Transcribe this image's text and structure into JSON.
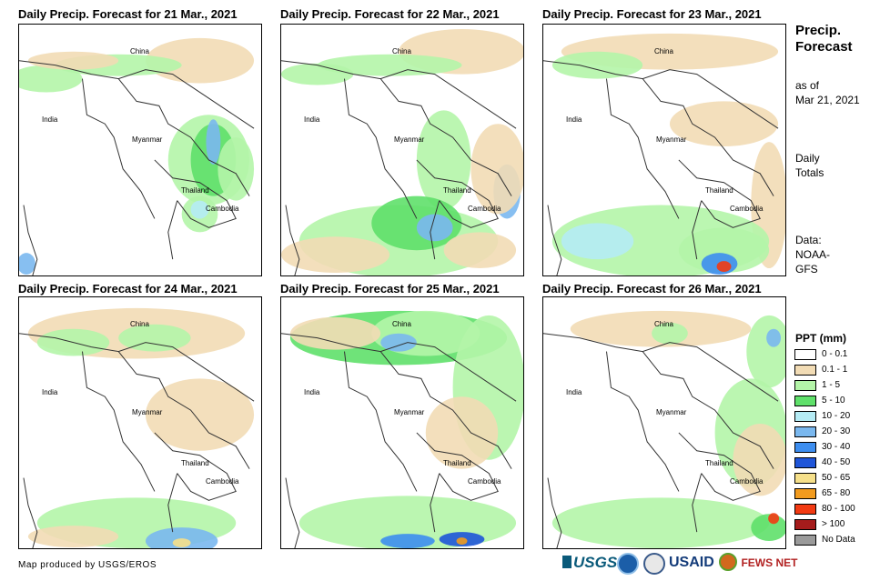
{
  "panels": [
    {
      "title": "Daily Precip. Forecast for 21 Mar., 2021"
    },
    {
      "title": "Daily Precip. Forecast for 22 Mar., 2021"
    },
    {
      "title": "Daily Precip. Forecast for 23 Mar., 2021"
    },
    {
      "title": "Daily Precip. Forecast for 24 Mar., 2021"
    },
    {
      "title": "Daily Precip. Forecast for 25 Mar., 2021"
    },
    {
      "title": "Daily Precip. Forecast for 26 Mar., 2021"
    }
  ],
  "map_labels": {
    "china": "China",
    "india": "India",
    "myanmar": "Myanmar",
    "thailand": "Thailand",
    "cambodia": "Cambodia"
  },
  "sidebar": {
    "title_line1": "Precip.",
    "title_line2": "Forecast",
    "asof_line1": "as of",
    "asof_line2": "Mar 21, 2021",
    "totals_line1": "Daily",
    "totals_line2": "Totals",
    "data_line1": "Data:",
    "data_line2": "NOAA-",
    "data_line3": "GFS"
  },
  "legend": {
    "title": "PPT (mm)",
    "items": [
      {
        "label": "0 - 0.1",
        "color": "#ffffff"
      },
      {
        "label": "0.1 - 1",
        "color": "#f2dcb5"
      },
      {
        "label": "1 - 5",
        "color": "#b4f5a8"
      },
      {
        "label": "5 - 10",
        "color": "#5fe06a"
      },
      {
        "label": "10 - 20",
        "color": "#b5ecf5"
      },
      {
        "label": "20 - 30",
        "color": "#7ab8ef"
      },
      {
        "label": "30 - 40",
        "color": "#3d8ef0"
      },
      {
        "label": "40 - 50",
        "color": "#1f55d8"
      },
      {
        "label": "50 - 65",
        "color": "#f6e08a"
      },
      {
        "label": "65 - 80",
        "color": "#f29b1e"
      },
      {
        "label": "80 - 100",
        "color": "#f23a12"
      },
      {
        "label": "> 100",
        "color": "#a51c1c"
      },
      {
        "label": "No Data",
        "color": "#9a9a9a"
      }
    ]
  },
  "credit": "Map produced by USGS/EROS",
  "logos": {
    "usgs": "USGS",
    "usaid": "USAID",
    "fewsnet": "FEWS NET"
  }
}
